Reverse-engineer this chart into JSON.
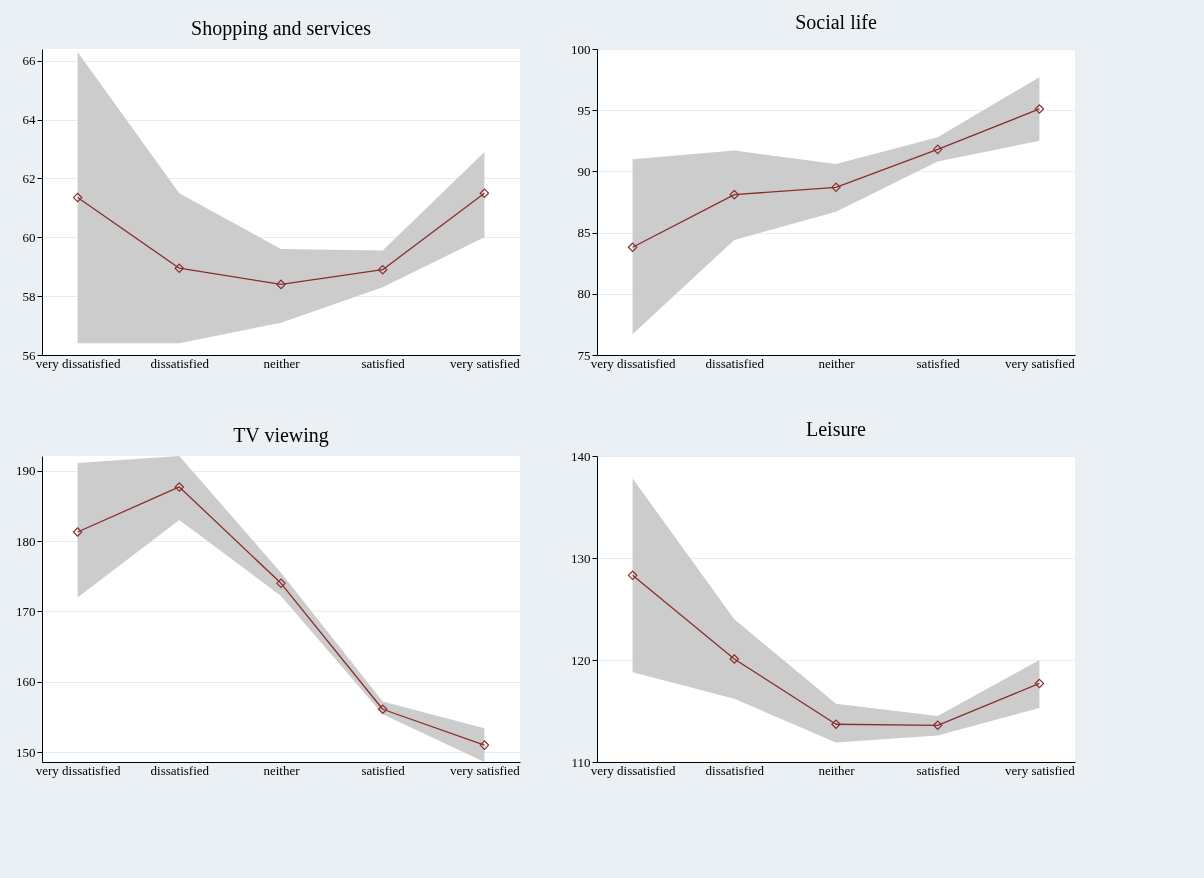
{
  "chart_data": [
    {
      "type": "line",
      "title": "Shopping and services",
      "categories": [
        "very dissatisfied",
        "dissatisfied",
        "neither",
        "satisfied",
        "very satisfied"
      ],
      "ylim": [
        56,
        66.4
      ],
      "yticks": [
        56,
        58,
        60,
        62,
        64,
        66
      ],
      "grid": "y",
      "marker": "diamond",
      "series": [
        {
          "color": "#8b2e2e",
          "values": [
            61.35,
            58.95,
            58.4,
            58.9,
            61.5
          ],
          "lower": [
            56.4,
            56.4,
            57.1,
            58.3,
            60.0
          ],
          "upper": [
            66.3,
            61.5,
            59.6,
            59.55,
            62.9
          ]
        }
      ]
    },
    {
      "type": "line",
      "title": "Social life",
      "categories": [
        "very dissatisfied",
        "dissatisfied",
        "neither",
        "satisfied",
        "very satisfied"
      ],
      "ylim": [
        75,
        100
      ],
      "yticks": [
        75,
        80,
        85,
        90,
        95,
        100
      ],
      "grid": "y",
      "marker": "diamond",
      "series": [
        {
          "color": "#8b2e2e",
          "values": [
            83.8,
            88.1,
            88.7,
            91.8,
            95.1
          ],
          "lower": [
            76.7,
            84.4,
            86.7,
            90.8,
            92.5
          ],
          "upper": [
            91.0,
            91.7,
            90.6,
            92.8,
            97.7
          ]
        }
      ]
    },
    {
      "type": "line",
      "title": "TV viewing",
      "categories": [
        "very dissatisfied",
        "dissatisfied",
        "neither",
        "satisfied",
        "very satisfied"
      ],
      "ylim": [
        148.6,
        192.1
      ],
      "yticks": [
        150,
        160,
        170,
        180,
        190
      ],
      "grid": "y",
      "marker": "diamond",
      "series": [
        {
          "color": "#8b2e2e",
          "values": [
            181.3,
            187.7,
            174.0,
            156.1,
            151.0
          ],
          "lower": [
            172.0,
            183.0,
            172.2,
            155.4,
            148.6
          ],
          "upper": [
            191.1,
            192.1,
            175.5,
            157.2,
            153.4
          ]
        }
      ]
    },
    {
      "type": "line",
      "title": "Leisure",
      "categories": [
        "very dissatisfied",
        "dissatisfied",
        "neither",
        "satisfied",
        "very satisfied"
      ],
      "ylim": [
        110,
        140
      ],
      "yticks": [
        110,
        120,
        130,
        140
      ],
      "grid": "y",
      "marker": "diamond",
      "series": [
        {
          "color": "#8b2e2e",
          "values": [
            128.3,
            120.1,
            113.7,
            113.6,
            117.7
          ],
          "lower": [
            118.8,
            116.2,
            111.9,
            112.6,
            115.3
          ],
          "upper": [
            137.8,
            124.0,
            115.7,
            114.5,
            120.0
          ]
        }
      ]
    }
  ]
}
